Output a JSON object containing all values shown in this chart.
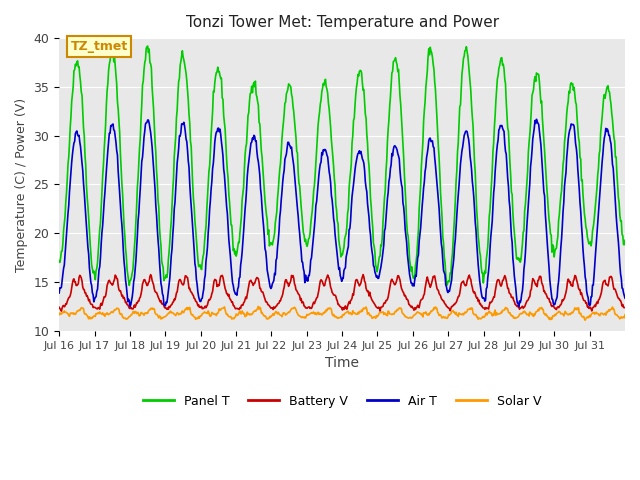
{
  "title": "Tonzi Tower Met: Temperature and Power",
  "xlabel": "Time",
  "ylabel": "Temperature (C) / Power (V)",
  "ylim": [
    10,
    40
  ],
  "annotation": "TZ_tmet",
  "x_tick_labels": [
    "Jul 16",
    "Jul 17",
    "Jul 18",
    "Jul 19",
    "Jul 20",
    "Jul 21",
    "Jul 22",
    "Jul 23",
    "Jul 24",
    "Jul 25",
    "Jul 26",
    "Jul 27",
    "Jul 28",
    "Jul 29",
    "Jul 30",
    "Jul 31"
  ],
  "colors": {
    "panel_t": "#00CC00",
    "battery_v": "#CC0000",
    "air_t": "#0000CC",
    "solar_v": "#FF9900",
    "background": "#E8E8E8",
    "annotation_bg": "#FFFFCC",
    "annotation_border": "#CC8800"
  },
  "legend": [
    "Panel T",
    "Battery V",
    "Air T",
    "Solar V"
  ],
  "n_days": 16,
  "pts_per_day": 48
}
